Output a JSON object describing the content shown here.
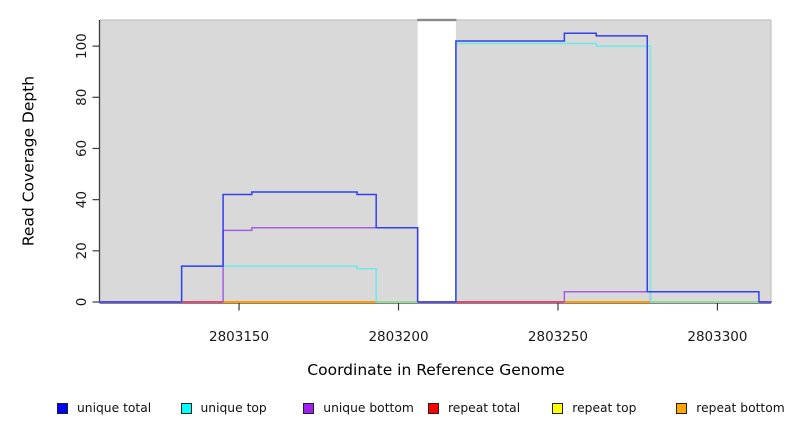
{
  "chart_data": {
    "type": "line",
    "subtype": "step-coverage",
    "title": "",
    "xlabel": "Coordinate in Reference Genome",
    "ylabel": "Read Coverage Depth",
    "x_ticks": [
      2803150,
      2803200,
      2803250,
      2803300
    ],
    "y_ticks": [
      0,
      20,
      40,
      60,
      80,
      100
    ],
    "xlim": [
      2803106.4,
      2803316.8
    ],
    "ylim": [
      0,
      110.2
    ],
    "grid": false,
    "legend_position": "bottom",
    "colors": {
      "plot_bg": "#d9d9d9",
      "page_bg": "#ffffff",
      "box_light": "#c2c2c2",
      "axis_dark": "#3c3c3c",
      "tick_label": "#1a1a1a",
      "masked_fill": "#ffffff",
      "masked_edge": "#8a8a8a"
    },
    "masked_region": {
      "x1": 2803206,
      "x2": 2803218
    },
    "series": [
      {
        "name": "unique total",
        "color": "#0000ff",
        "line_color": "#3240ee",
        "points": [
          [
            2803106,
            0
          ],
          [
            2803132,
            14
          ],
          [
            2803145,
            42
          ],
          [
            2803154,
            43
          ],
          [
            2803187,
            42
          ],
          [
            2803193,
            29
          ],
          [
            2803206,
            0
          ],
          [
            2803218,
            102
          ],
          [
            2803252,
            105
          ],
          [
            2803262,
            104
          ],
          [
            2803278,
            4
          ],
          [
            2803313,
            0
          ],
          [
            2803317,
            0
          ]
        ]
      },
      {
        "name": "unique top",
        "color": "#00ffff",
        "line_color": "#6fe9ea",
        "points": [
          [
            2803106,
            0
          ],
          [
            2803132,
            14
          ],
          [
            2803187,
            13
          ],
          [
            2803193,
            0
          ],
          [
            2803218,
            101
          ],
          [
            2803262,
            100
          ],
          [
            2803279,
            0
          ],
          [
            2803317,
            0
          ]
        ]
      },
      {
        "name": "unique bottom",
        "color": "#a020f0",
        "line_color": "#a55fe3",
        "points": [
          [
            2803106,
            0
          ],
          [
            2803145,
            28
          ],
          [
            2803154,
            29
          ],
          [
            2803206,
            0
          ],
          [
            2803252,
            4
          ],
          [
            2803279,
            0
          ],
          [
            2803317,
            0
          ]
        ]
      },
      {
        "name": "repeat total",
        "color": "#ff0000",
        "line_color": "#e04878",
        "points": [
          [
            2803106,
            0
          ],
          [
            2803317,
            0
          ]
        ]
      },
      {
        "name": "repeat top",
        "color": "#ffff00",
        "line_color": "#ffff00",
        "points": [
          [
            2803106,
            0
          ],
          [
            2803317,
            0
          ]
        ]
      },
      {
        "name": "repeat bottom",
        "color": "#ffa500",
        "line_color": "#ff9c00",
        "points": [
          [
            2803106,
            0
          ],
          [
            2803317,
            0
          ]
        ]
      }
    ],
    "baseline_segments": [
      {
        "x1": 2803106,
        "x2": 2803132,
        "color": "#584ee4"
      },
      {
        "x1": 2803132,
        "x2": 2803145,
        "color": "#e04878"
      },
      {
        "x1": 2803145,
        "x2": 2803193,
        "color": "#ff9c00"
      },
      {
        "x1": 2803193,
        "x2": 2803206,
        "color": "#95d99e"
      },
      {
        "x1": 2803206,
        "x2": 2803218,
        "color": "#584ee4"
      },
      {
        "x1": 2803218,
        "x2": 2803252,
        "color": "#e04878"
      },
      {
        "x1": 2803252,
        "x2": 2803279,
        "color": "#ff9c00"
      },
      {
        "x1": 2803279,
        "x2": 2803313,
        "color": "#95d99e"
      },
      {
        "x1": 2803313,
        "x2": 2803317,
        "color": "#584ee4"
      }
    ]
  }
}
